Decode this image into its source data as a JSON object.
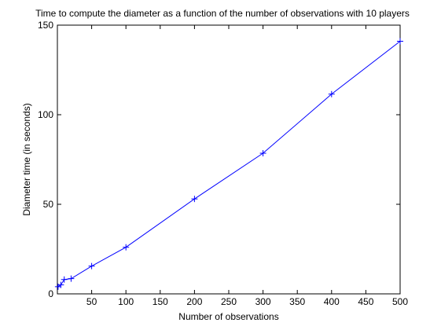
{
  "chart_data": {
    "type": "line",
    "title": "Time to compute the diameter as a function of the number of observations with 10 players",
    "xlabel": "Number of observations",
    "ylabel": "Diameter time (in seconds)",
    "xlim": [
      0,
      500
    ],
    "ylim": [
      0,
      150
    ],
    "x_ticks": [
      50,
      100,
      150,
      200,
      250,
      300,
      350,
      400,
      450,
      500
    ],
    "y_ticks": [
      0,
      50,
      100,
      150
    ],
    "grid": false,
    "legend": "none",
    "series": [
      {
        "color": "#0000ff",
        "marker": "+",
        "x": [
          1,
          5,
          10,
          20,
          50,
          100,
          200,
          300,
          400,
          500
        ],
        "y": [
          4,
          5,
          8,
          8.5,
          15.5,
          26,
          53,
          78.5,
          111.5,
          141
        ]
      }
    ]
  }
}
